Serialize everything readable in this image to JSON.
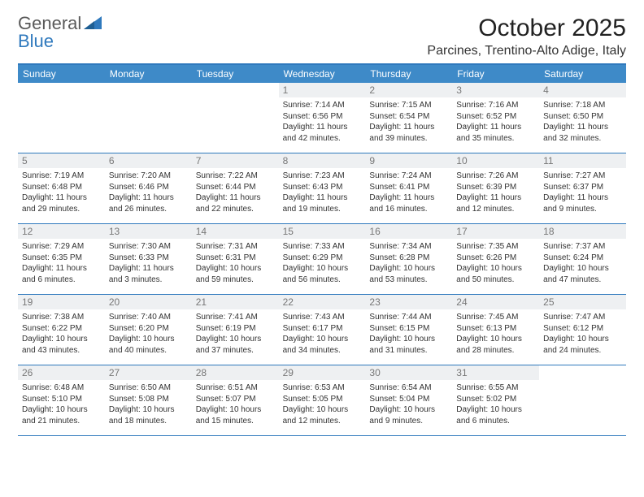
{
  "logo": {
    "word1": "General",
    "word2": "Blue"
  },
  "header": {
    "month_title": "October 2025",
    "location": "Parcines, Trentino-Alto Adige, Italy"
  },
  "colors": {
    "accent": "#2f79bd",
    "header_bg": "#3e8ac8",
    "daynum_bg": "#eef0f2",
    "text": "#333333"
  },
  "weekdays": [
    "Sunday",
    "Monday",
    "Tuesday",
    "Wednesday",
    "Thursday",
    "Friday",
    "Saturday"
  ],
  "weeks": [
    [
      {
        "n": "",
        "sunrise": "",
        "sunset": "",
        "dl1": "",
        "dl2": ""
      },
      {
        "n": "",
        "sunrise": "",
        "sunset": "",
        "dl1": "",
        "dl2": ""
      },
      {
        "n": "",
        "sunrise": "",
        "sunset": "",
        "dl1": "",
        "dl2": ""
      },
      {
        "n": "1",
        "sunrise": "Sunrise: 7:14 AM",
        "sunset": "Sunset: 6:56 PM",
        "dl1": "Daylight: 11 hours",
        "dl2": "and 42 minutes."
      },
      {
        "n": "2",
        "sunrise": "Sunrise: 7:15 AM",
        "sunset": "Sunset: 6:54 PM",
        "dl1": "Daylight: 11 hours",
        "dl2": "and 39 minutes."
      },
      {
        "n": "3",
        "sunrise": "Sunrise: 7:16 AM",
        "sunset": "Sunset: 6:52 PM",
        "dl1": "Daylight: 11 hours",
        "dl2": "and 35 minutes."
      },
      {
        "n": "4",
        "sunrise": "Sunrise: 7:18 AM",
        "sunset": "Sunset: 6:50 PM",
        "dl1": "Daylight: 11 hours",
        "dl2": "and 32 minutes."
      }
    ],
    [
      {
        "n": "5",
        "sunrise": "Sunrise: 7:19 AM",
        "sunset": "Sunset: 6:48 PM",
        "dl1": "Daylight: 11 hours",
        "dl2": "and 29 minutes."
      },
      {
        "n": "6",
        "sunrise": "Sunrise: 7:20 AM",
        "sunset": "Sunset: 6:46 PM",
        "dl1": "Daylight: 11 hours",
        "dl2": "and 26 minutes."
      },
      {
        "n": "7",
        "sunrise": "Sunrise: 7:22 AM",
        "sunset": "Sunset: 6:44 PM",
        "dl1": "Daylight: 11 hours",
        "dl2": "and 22 minutes."
      },
      {
        "n": "8",
        "sunrise": "Sunrise: 7:23 AM",
        "sunset": "Sunset: 6:43 PM",
        "dl1": "Daylight: 11 hours",
        "dl2": "and 19 minutes."
      },
      {
        "n": "9",
        "sunrise": "Sunrise: 7:24 AM",
        "sunset": "Sunset: 6:41 PM",
        "dl1": "Daylight: 11 hours",
        "dl2": "and 16 minutes."
      },
      {
        "n": "10",
        "sunrise": "Sunrise: 7:26 AM",
        "sunset": "Sunset: 6:39 PM",
        "dl1": "Daylight: 11 hours",
        "dl2": "and 12 minutes."
      },
      {
        "n": "11",
        "sunrise": "Sunrise: 7:27 AM",
        "sunset": "Sunset: 6:37 PM",
        "dl1": "Daylight: 11 hours",
        "dl2": "and 9 minutes."
      }
    ],
    [
      {
        "n": "12",
        "sunrise": "Sunrise: 7:29 AM",
        "sunset": "Sunset: 6:35 PM",
        "dl1": "Daylight: 11 hours",
        "dl2": "and 6 minutes."
      },
      {
        "n": "13",
        "sunrise": "Sunrise: 7:30 AM",
        "sunset": "Sunset: 6:33 PM",
        "dl1": "Daylight: 11 hours",
        "dl2": "and 3 minutes."
      },
      {
        "n": "14",
        "sunrise": "Sunrise: 7:31 AM",
        "sunset": "Sunset: 6:31 PM",
        "dl1": "Daylight: 10 hours",
        "dl2": "and 59 minutes."
      },
      {
        "n": "15",
        "sunrise": "Sunrise: 7:33 AM",
        "sunset": "Sunset: 6:29 PM",
        "dl1": "Daylight: 10 hours",
        "dl2": "and 56 minutes."
      },
      {
        "n": "16",
        "sunrise": "Sunrise: 7:34 AM",
        "sunset": "Sunset: 6:28 PM",
        "dl1": "Daylight: 10 hours",
        "dl2": "and 53 minutes."
      },
      {
        "n": "17",
        "sunrise": "Sunrise: 7:35 AM",
        "sunset": "Sunset: 6:26 PM",
        "dl1": "Daylight: 10 hours",
        "dl2": "and 50 minutes."
      },
      {
        "n": "18",
        "sunrise": "Sunrise: 7:37 AM",
        "sunset": "Sunset: 6:24 PM",
        "dl1": "Daylight: 10 hours",
        "dl2": "and 47 minutes."
      }
    ],
    [
      {
        "n": "19",
        "sunrise": "Sunrise: 7:38 AM",
        "sunset": "Sunset: 6:22 PM",
        "dl1": "Daylight: 10 hours",
        "dl2": "and 43 minutes."
      },
      {
        "n": "20",
        "sunrise": "Sunrise: 7:40 AM",
        "sunset": "Sunset: 6:20 PM",
        "dl1": "Daylight: 10 hours",
        "dl2": "and 40 minutes."
      },
      {
        "n": "21",
        "sunrise": "Sunrise: 7:41 AM",
        "sunset": "Sunset: 6:19 PM",
        "dl1": "Daylight: 10 hours",
        "dl2": "and 37 minutes."
      },
      {
        "n": "22",
        "sunrise": "Sunrise: 7:43 AM",
        "sunset": "Sunset: 6:17 PM",
        "dl1": "Daylight: 10 hours",
        "dl2": "and 34 minutes."
      },
      {
        "n": "23",
        "sunrise": "Sunrise: 7:44 AM",
        "sunset": "Sunset: 6:15 PM",
        "dl1": "Daylight: 10 hours",
        "dl2": "and 31 minutes."
      },
      {
        "n": "24",
        "sunrise": "Sunrise: 7:45 AM",
        "sunset": "Sunset: 6:13 PM",
        "dl1": "Daylight: 10 hours",
        "dl2": "and 28 minutes."
      },
      {
        "n": "25",
        "sunrise": "Sunrise: 7:47 AM",
        "sunset": "Sunset: 6:12 PM",
        "dl1": "Daylight: 10 hours",
        "dl2": "and 24 minutes."
      }
    ],
    [
      {
        "n": "26",
        "sunrise": "Sunrise: 6:48 AM",
        "sunset": "Sunset: 5:10 PM",
        "dl1": "Daylight: 10 hours",
        "dl2": "and 21 minutes."
      },
      {
        "n": "27",
        "sunrise": "Sunrise: 6:50 AM",
        "sunset": "Sunset: 5:08 PM",
        "dl1": "Daylight: 10 hours",
        "dl2": "and 18 minutes."
      },
      {
        "n": "28",
        "sunrise": "Sunrise: 6:51 AM",
        "sunset": "Sunset: 5:07 PM",
        "dl1": "Daylight: 10 hours",
        "dl2": "and 15 minutes."
      },
      {
        "n": "29",
        "sunrise": "Sunrise: 6:53 AM",
        "sunset": "Sunset: 5:05 PM",
        "dl1": "Daylight: 10 hours",
        "dl2": "and 12 minutes."
      },
      {
        "n": "30",
        "sunrise": "Sunrise: 6:54 AM",
        "sunset": "Sunset: 5:04 PM",
        "dl1": "Daylight: 10 hours",
        "dl2": "and 9 minutes."
      },
      {
        "n": "31",
        "sunrise": "Sunrise: 6:55 AM",
        "sunset": "Sunset: 5:02 PM",
        "dl1": "Daylight: 10 hours",
        "dl2": "and 6 minutes."
      },
      {
        "n": "",
        "sunrise": "",
        "sunset": "",
        "dl1": "",
        "dl2": ""
      }
    ]
  ]
}
